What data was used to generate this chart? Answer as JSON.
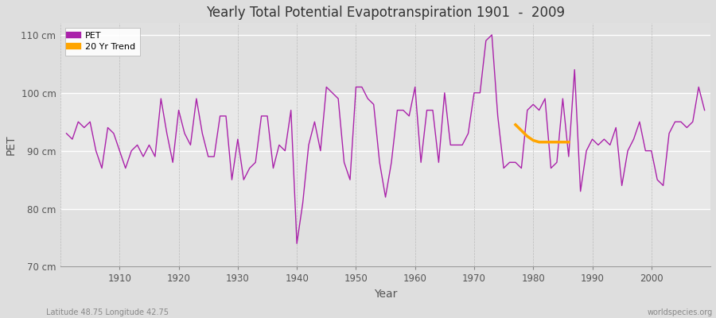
{
  "title": "Yearly Total Potential Evapotranspiration 1901  -  2009",
  "xlabel": "Year",
  "ylabel": "PET",
  "bottom_left_label": "Latitude 48.75 Longitude 42.75",
  "bottom_right_label": "worldspecies.org",
  "pet_color": "#AA22AA",
  "trend_color": "#FFA500",
  "fig_bg_color": "#DEDEDE",
  "plot_bg_color": "#F0F0F0",
  "band_bg_color": "#E0E0E0",
  "ylim": [
    70,
    112
  ],
  "yticks": [
    70,
    80,
    90,
    100,
    110
  ],
  "ytick_labels": [
    "70 cm",
    "80 cm",
    "90 cm",
    "100 cm",
    "110 cm"
  ],
  "years": [
    1901,
    1902,
    1903,
    1904,
    1905,
    1906,
    1907,
    1908,
    1909,
    1910,
    1911,
    1912,
    1913,
    1914,
    1915,
    1916,
    1917,
    1918,
    1919,
    1920,
    1921,
    1922,
    1923,
    1924,
    1925,
    1926,
    1927,
    1928,
    1929,
    1930,
    1931,
    1932,
    1933,
    1934,
    1935,
    1936,
    1937,
    1938,
    1939,
    1940,
    1941,
    1942,
    1943,
    1944,
    1945,
    1946,
    1947,
    1948,
    1949,
    1950,
    1951,
    1952,
    1953,
    1954,
    1955,
    1956,
    1957,
    1958,
    1959,
    1960,
    1961,
    1962,
    1963,
    1964,
    1965,
    1966,
    1967,
    1968,
    1969,
    1970,
    1971,
    1972,
    1973,
    1974,
    1975,
    1976,
    1977,
    1978,
    1979,
    1980,
    1981,
    1982,
    1983,
    1984,
    1985,
    1986,
    1987,
    1988,
    1989,
    1990,
    1991,
    1992,
    1993,
    1994,
    1995,
    1996,
    1997,
    1998,
    1999,
    2000,
    2001,
    2002,
    2003,
    2004,
    2005,
    2006,
    2007,
    2008,
    2009
  ],
  "pet_values": [
    93,
    92,
    95,
    94,
    95,
    90,
    87,
    94,
    93,
    90,
    87,
    90,
    91,
    89,
    91,
    89,
    99,
    93,
    88,
    97,
    93,
    91,
    99,
    93,
    89,
    89,
    96,
    96,
    85,
    92,
    85,
    87,
    88,
    96,
    96,
    87,
    91,
    90,
    97,
    74,
    81,
    91,
    95,
    90,
    101,
    100,
    99,
    88,
    85,
    101,
    101,
    99,
    98,
    88,
    82,
    88,
    97,
    97,
    96,
    101,
    88,
    97,
    97,
    88,
    100,
    91,
    91,
    91,
    93,
    100,
    100,
    109,
    110,
    96,
    87,
    88,
    88,
    87,
    97,
    98,
    97,
    99,
    87,
    88,
    99,
    89,
    104,
    83,
    90,
    92,
    91,
    92,
    91,
    94,
    84,
    90,
    92,
    95,
    90,
    90,
    85,
    84,
    93,
    95,
    95,
    94,
    95,
    101,
    97
  ],
  "trend_years": [
    1977,
    1978,
    1979,
    1980,
    1981,
    1982,
    1983,
    1984,
    1985,
    1986
  ],
  "trend_values": [
    94.5,
    93.5,
    92.5,
    91.8,
    91.5,
    91.5,
    91.5,
    91.5,
    91.5,
    91.5
  ]
}
